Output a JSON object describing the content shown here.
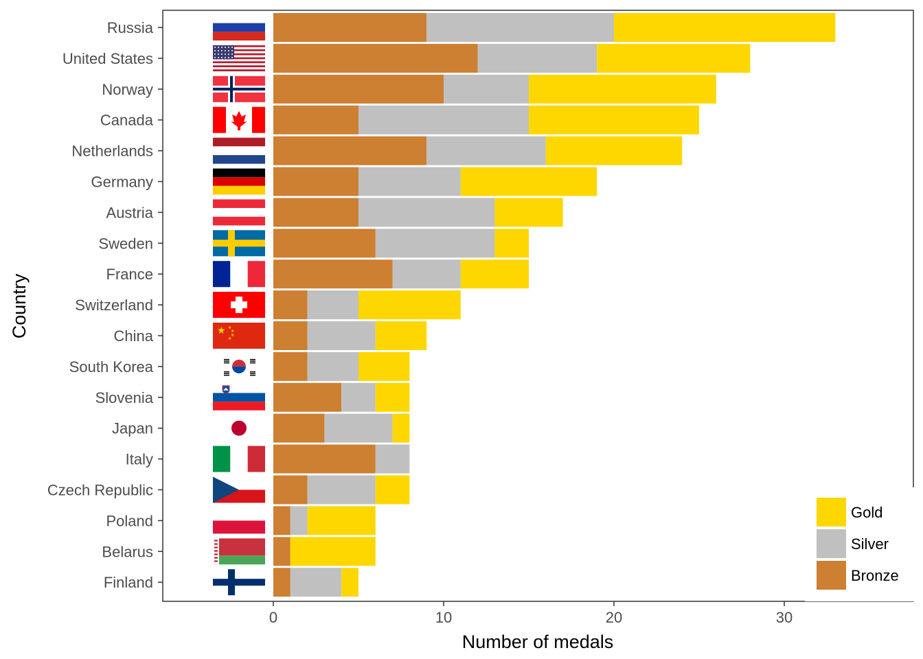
{
  "chart_data": {
    "type": "bar",
    "orientation": "horizontal",
    "stacked": true,
    "xlabel": "Number of medals",
    "ylabel": "Country",
    "xlim": [
      -6.5,
      37.5
    ],
    "xticks": [
      0,
      10,
      20,
      30
    ],
    "grid": false,
    "legend_position": "bottom-right",
    "categories": [
      "Russia",
      "United States",
      "Norway",
      "Canada",
      "Netherlands",
      "Germany",
      "Austria",
      "Sweden",
      "France",
      "Switzerland",
      "China",
      "South Korea",
      "Slovenia",
      "Japan",
      "Italy",
      "Czech Republic",
      "Poland",
      "Belarus",
      "Finland"
    ],
    "series": [
      {
        "name": "Bronze",
        "color": "#cd7f32",
        "values": [
          9,
          12,
          10,
          5,
          9,
          5,
          5,
          6,
          7,
          2,
          2,
          2,
          4,
          3,
          6,
          2,
          1,
          1,
          1
        ]
      },
      {
        "name": "Silver",
        "color": "#c0c0c0",
        "values": [
          11,
          7,
          5,
          10,
          7,
          6,
          8,
          7,
          4,
          3,
          4,
          3,
          2,
          4,
          2,
          4,
          1,
          0,
          3
        ]
      },
      {
        "name": "Gold",
        "color": "#ffd700",
        "values": [
          13,
          9,
          11,
          10,
          8,
          8,
          4,
          2,
          4,
          6,
          3,
          3,
          2,
          1,
          0,
          2,
          4,
          5,
          1
        ]
      }
    ],
    "legend_order": [
      "Gold",
      "Silver",
      "Bronze"
    ],
    "flag_icons": [
      "flag-russia-icon",
      "flag-united-states-icon",
      "flag-norway-icon",
      "flag-canada-icon",
      "flag-netherlands-icon",
      "flag-germany-icon",
      "flag-austria-icon",
      "flag-sweden-icon",
      "flag-france-icon",
      "flag-switzerland-icon",
      "flag-china-icon",
      "flag-south-korea-icon",
      "flag-slovenia-icon",
      "flag-japan-icon",
      "flag-italy-icon",
      "flag-czech-republic-icon",
      "flag-poland-icon",
      "flag-belarus-icon",
      "flag-finland-icon"
    ]
  }
}
